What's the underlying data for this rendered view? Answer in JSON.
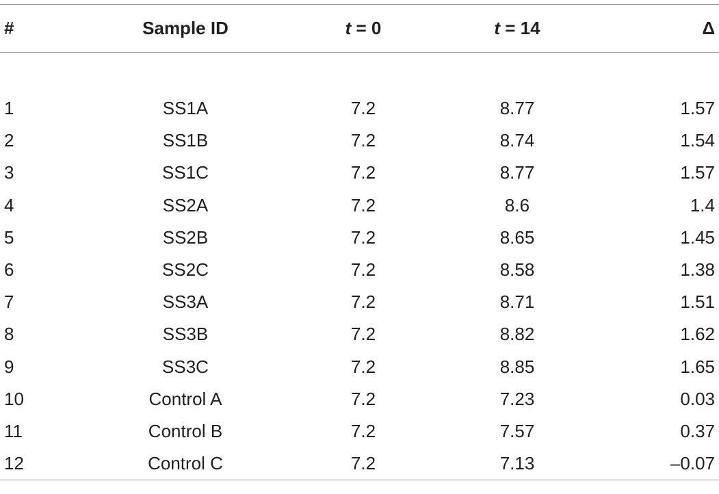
{
  "table": {
    "headers": {
      "num": "#",
      "sample_id": "Sample ID",
      "t0_var": "t",
      "t0_rest": " = 0",
      "t14_var": "t",
      "t14_rest": " = 14",
      "delta": "Δ"
    },
    "rows": [
      {
        "num": "1",
        "sample_id": "SS1A",
        "t0": "7.2",
        "t14": "8.77",
        "delta": "1.57"
      },
      {
        "num": "2",
        "sample_id": "SS1B",
        "t0": "7.2",
        "t14": "8.74",
        "delta": "1.54"
      },
      {
        "num": "3",
        "sample_id": "SS1C",
        "t0": "7.2",
        "t14": "8.77",
        "delta": "1.57"
      },
      {
        "num": "4",
        "sample_id": "SS2A",
        "t0": "7.2",
        "t14": "8.6",
        "delta": "1.4"
      },
      {
        "num": "5",
        "sample_id": "SS2B",
        "t0": "7.2",
        "t14": "8.65",
        "delta": "1.45"
      },
      {
        "num": "6",
        "sample_id": "SS2C",
        "t0": "7.2",
        "t14": "8.58",
        "delta": "1.38"
      },
      {
        "num": "7",
        "sample_id": "SS3A",
        "t0": "7.2",
        "t14": "8.71",
        "delta": "1.51"
      },
      {
        "num": "8",
        "sample_id": "SS3B",
        "t0": "7.2",
        "t14": "8.82",
        "delta": "1.62"
      },
      {
        "num": "9",
        "sample_id": "SS3C",
        "t0": "7.2",
        "t14": "8.85",
        "delta": "1.65"
      },
      {
        "num": "10",
        "sample_id": "Control A",
        "t0": "7.2",
        "t14": "7.23",
        "delta": "0.03"
      },
      {
        "num": "11",
        "sample_id": "Control B",
        "t0": "7.2",
        "t14": "7.57",
        "delta": "0.37"
      },
      {
        "num": "12",
        "sample_id": "Control C",
        "t0": "7.2",
        "t14": "7.13",
        "delta": "–0.07"
      }
    ]
  }
}
